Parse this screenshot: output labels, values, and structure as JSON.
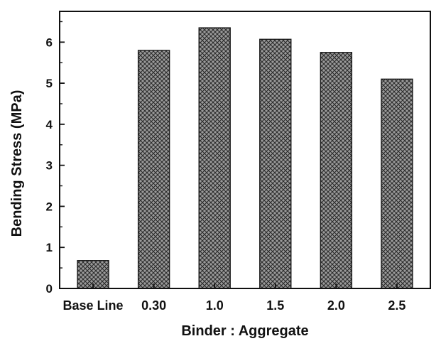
{
  "chart_data": {
    "type": "bar",
    "title": "",
    "xlabel": "Binder : Aggregate",
    "ylabel": "Bending Stress (MPa)",
    "categories": [
      "Base Line",
      "0.30",
      "1.0",
      "1.5",
      "2.0",
      "2.5"
    ],
    "values": [
      0.68,
      5.8,
      6.35,
      6.07,
      5.75,
      5.1
    ],
    "ylim": [
      0,
      6.75
    ],
    "yticks": [
      0,
      1,
      2,
      3,
      4,
      5,
      6
    ],
    "ytick_labels": [
      "0",
      "1",
      "2",
      "3",
      "4",
      "5",
      "6"
    ],
    "grid": false,
    "bar_fill": "#8a8a8a",
    "bar_pattern": "crosshatch",
    "bar_edge": "#1a1a1a"
  }
}
